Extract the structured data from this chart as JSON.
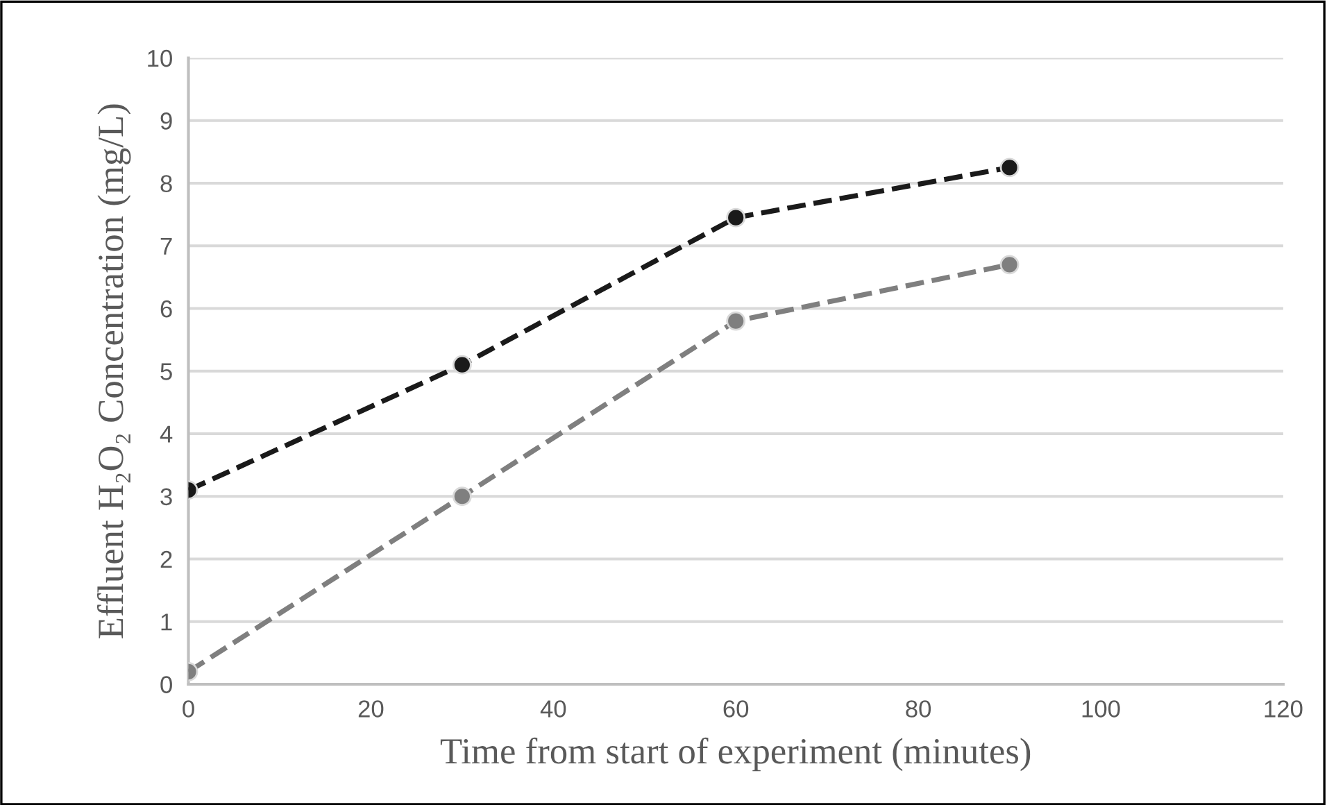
{
  "chart_data": {
    "type": "line",
    "xlabel": "Time from start of experiment (minutes)",
    "ylabel": "Effluent H₂O₂ Concentration (mg/L)",
    "x": [
      0,
      30,
      60,
      90
    ],
    "series": [
      {
        "color": "#1a1a1a",
        "values": [
          3.1,
          5.1,
          7.45,
          8.25
        ]
      },
      {
        "color": "#7f7f7f",
        "values": [
          0.2,
          3.0,
          5.8,
          6.7
        ]
      }
    ],
    "xlim": [
      0,
      120
    ],
    "xticks": [
      0,
      20,
      40,
      60,
      80,
      100,
      120
    ],
    "ylim": [
      0,
      10
    ],
    "yticks": [
      0,
      1,
      2,
      3,
      4,
      5,
      6,
      7,
      8,
      9,
      10
    ],
    "grid": "y",
    "marker": "circle",
    "line_style": "dashed"
  }
}
